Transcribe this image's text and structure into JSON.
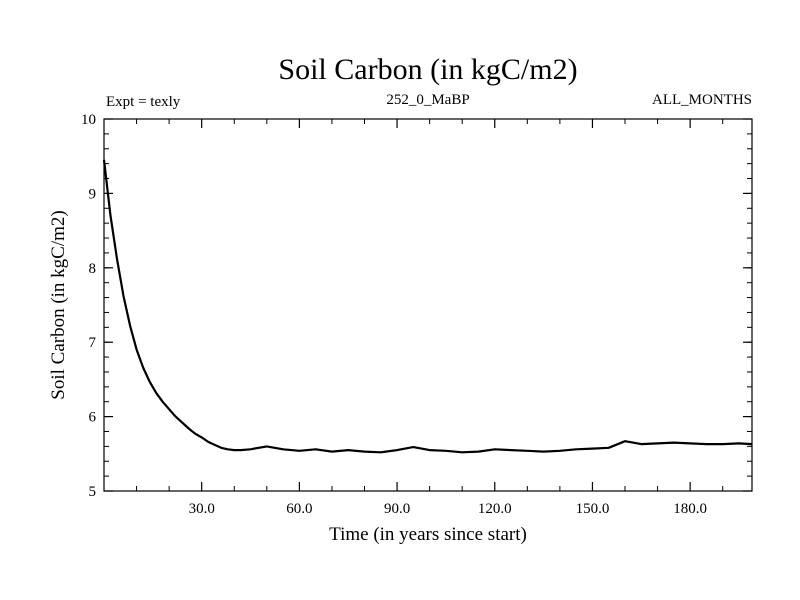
{
  "chart_data": {
    "type": "line",
    "title": "Soil Carbon (in kgC/m2)",
    "subtitle_left": "Expt = texly",
    "subtitle_center": "252_0_MaBP",
    "subtitle_right": "ALL_MONTHS",
    "xlabel": "Time (in years since start)",
    "ylabel": "Soil Carbon (in kgC/m2)",
    "xlim": [
      0,
      199
    ],
    "ylim": [
      5,
      10
    ],
    "xticks": [
      30,
      60,
      90,
      120,
      150,
      180
    ],
    "xtick_labels": [
      "30.0",
      "60.0",
      "90.0",
      "120.0",
      "150.0",
      "180.0"
    ],
    "yticks": [
      5,
      6,
      7,
      8,
      9,
      10
    ],
    "ytick_labels": [
      "5",
      "6",
      "7",
      "8",
      "9",
      "10"
    ],
    "grid": false,
    "series": [
      {
        "name": "Soil Carbon",
        "color": "#000000",
        "x": [
          0,
          2,
          4,
          6,
          8,
          10,
          12,
          14,
          16,
          18,
          20,
          22,
          24,
          26,
          28,
          30,
          32,
          34,
          36,
          38,
          40,
          42,
          45,
          50,
          55,
          60,
          65,
          70,
          75,
          80,
          85,
          90,
          95,
          100,
          105,
          110,
          115,
          120,
          125,
          130,
          135,
          140,
          145,
          150,
          155,
          160,
          165,
          170,
          175,
          180,
          185,
          190,
          195,
          199
        ],
        "y": [
          9.45,
          8.7,
          8.12,
          7.62,
          7.22,
          6.9,
          6.66,
          6.47,
          6.32,
          6.2,
          6.1,
          6.0,
          5.92,
          5.84,
          5.77,
          5.72,
          5.66,
          5.62,
          5.58,
          5.56,
          5.55,
          5.55,
          5.56,
          5.6,
          5.56,
          5.54,
          5.56,
          5.53,
          5.55,
          5.53,
          5.52,
          5.55,
          5.59,
          5.55,
          5.54,
          5.52,
          5.53,
          5.56,
          5.55,
          5.54,
          5.53,
          5.54,
          5.56,
          5.57,
          5.58,
          5.67,
          5.63,
          5.64,
          5.65,
          5.64,
          5.63,
          5.63,
          5.64,
          5.63
        ]
      }
    ]
  }
}
